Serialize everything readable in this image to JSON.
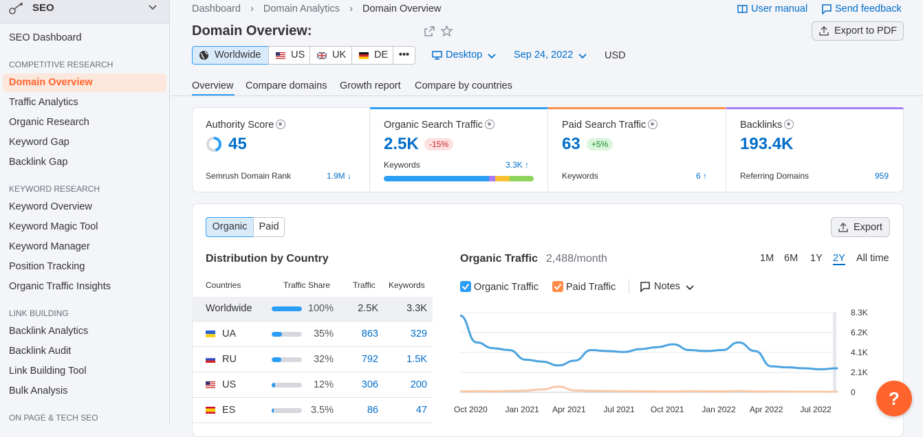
{
  "sidebar": {
    "tool": "SEO",
    "dashboard": "SEO Dashboard",
    "sections": [
      {
        "title": "COMPETITIVE RESEARCH",
        "items": [
          "Domain Overview",
          "Traffic Analytics",
          "Organic Research",
          "Keyword Gap",
          "Backlink Gap"
        ]
      },
      {
        "title": "KEYWORD RESEARCH",
        "items": [
          "Keyword Overview",
          "Keyword Magic Tool",
          "Keyword Manager",
          "Position Tracking",
          "Organic Traffic Insights"
        ]
      },
      {
        "title": "LINK BUILDING",
        "items": [
          "Backlink Analytics",
          "Backlink Audit",
          "Link Building Tool",
          "Bulk Analysis"
        ]
      },
      {
        "title": "ON PAGE & TECH SEO",
        "items": []
      }
    ],
    "active_item": "Domain Overview",
    "accent": "#ff642d"
  },
  "breadcrumb": [
    "Dashboard",
    "Domain Analytics",
    "Domain Overview"
  ],
  "header": {
    "title": "Domain Overview:",
    "user_manual": "User manual",
    "send_feedback": "Send feedback",
    "export_pdf": "Export to PDF"
  },
  "filters": {
    "databases": [
      "Worldwide",
      "US",
      "UK",
      "DE"
    ],
    "more": "•••",
    "device": "Desktop",
    "date": "Sep 24, 2022",
    "currency": "USD"
  },
  "tabs": [
    "Overview",
    "Compare domains",
    "Growth report",
    "Compare by countries"
  ],
  "kpis": {
    "authority": {
      "title": "Authority Score",
      "value": "45",
      "sub_label": "Semrush Domain Rank",
      "sub_value": "1.9M ↓"
    },
    "organic": {
      "title": "Organic Search Traffic",
      "value": "2.5K",
      "badge": "-15%",
      "sub_label": "Keywords",
      "sub_value": "3.3K ↑"
    },
    "paid": {
      "title": "Paid Search Traffic",
      "value": "63",
      "badge": "+5%",
      "sub_label": "Keywords",
      "sub_value": "6 ↑"
    },
    "backlinks": {
      "title": "Backlinks",
      "value": "193.4K",
      "sub_label": "Referring Domains",
      "sub_value": "959"
    }
  },
  "section_toggle": {
    "organic": "Organic",
    "paid": "Paid",
    "export": "Export"
  },
  "distribution": {
    "title": "Distribution by Country",
    "columns": [
      "Countries",
      "Traffic Share",
      "Traffic",
      "Keywords"
    ],
    "rows": [
      {
        "country": "Worldwide",
        "share": "100%",
        "share_value": 100,
        "traffic": "2.5K",
        "keywords": "3.3K"
      },
      {
        "country": "UA",
        "share": "35%",
        "share_value": 35,
        "traffic": "863",
        "keywords": "329"
      },
      {
        "country": "RU",
        "share": "32%",
        "share_value": 32,
        "traffic": "792",
        "keywords": "1.5K"
      },
      {
        "country": "US",
        "share": "12%",
        "share_value": 12,
        "traffic": "306",
        "keywords": "200"
      },
      {
        "country": "ES",
        "share": "3.5%",
        "share_value": 3.5,
        "traffic": "86",
        "keywords": "47"
      }
    ]
  },
  "traffic_chart": {
    "title": "Organic Traffic",
    "subtitle": "2,488/month",
    "ranges": [
      "1M",
      "6M",
      "1Y",
      "2Y",
      "All time"
    ],
    "selected_range": "2Y",
    "legend": {
      "organic": "Organic Traffic",
      "paid": "Paid Traffic",
      "notes": "Notes"
    }
  },
  "chart_data": {
    "type": "line",
    "x": [
      "Oct 2020",
      "Nov 2020",
      "Dec 2020",
      "Jan 2021",
      "Feb 2021",
      "Mar 2021",
      "Apr 2021",
      "May 2021",
      "Jun 2021",
      "Jul 2021",
      "Aug 2021",
      "Sep 2021",
      "Oct 2021",
      "Nov 2021",
      "Dec 2021",
      "Jan 2022",
      "Feb 2022",
      "Mar 2022",
      "Apr 2022",
      "May 2022",
      "Jun 2022",
      "Jul 2022",
      "Aug 2022",
      "Sep 2022"
    ],
    "x_tick_labels": [
      "Oct 2020",
      "Jan 2021",
      "Apr 2021",
      "Jul 2021",
      "Oct 2021",
      "Jan 2022",
      "Apr 2022",
      "Jul 2022"
    ],
    "y_tick_labels": [
      "8.3K",
      "6.2K",
      "4.1K",
      "2.1K",
      "0"
    ],
    "ylim": [
      0,
      8300
    ],
    "series": [
      {
        "name": "Organic Traffic",
        "color": "#4aa3df",
        "values": [
          8000,
          5200,
          4600,
          4400,
          3400,
          3200,
          2800,
          3300,
          4400,
          4300,
          4200,
          4500,
          4700,
          5000,
          4400,
          4300,
          4400,
          5200,
          4300,
          2700,
          2600,
          2500,
          2400,
          2500
        ]
      },
      {
        "name": "Paid Traffic",
        "color": "#f7c9a8",
        "values": [
          100,
          120,
          110,
          130,
          180,
          300,
          600,
          200,
          150,
          130,
          120,
          110,
          100,
          100,
          120,
          110,
          100,
          130,
          100,
          90,
          80,
          70,
          70,
          63
        ]
      }
    ],
    "grid": true,
    "legend": "top-left"
  }
}
